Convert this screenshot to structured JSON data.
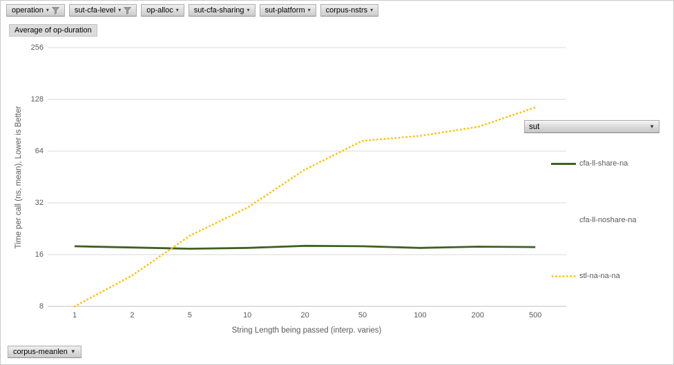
{
  "app_title": "pivot-chart",
  "filters": {
    "fields": [
      {
        "label": "operation",
        "filtered": true
      },
      {
        "label": "sut-cfa-level",
        "filtered": true
      },
      {
        "label": "op-alloc",
        "filtered": false
      },
      {
        "label": "sut-cfa-sharing",
        "filtered": false
      },
      {
        "label": "sut-platform",
        "filtered": false
      },
      {
        "label": "corpus-nstrs",
        "filtered": false
      }
    ],
    "value_button": "Average of op-duration",
    "legend_field_button": "sut",
    "axis_field_button": "corpus-meanlen"
  },
  "legend": {
    "position": "right",
    "entries": [
      {
        "label": "cfa-ll-share-na",
        "sample": "solid",
        "color": "#3e6021"
      },
      {
        "label": "cfa-ll-noshare-na",
        "sample": "none",
        "color": "#595959"
      },
      {
        "label": "stl-na-na-na",
        "sample": "dotted",
        "color": "#ffc000"
      }
    ]
  },
  "chart_data": {
    "type": "line",
    "title": "Average of op-duration",
    "xlabel": "String Length  being passed (interp. varies)",
    "ylabel": "Time per call (ns, mean),  Lower is Better",
    "x_scale": "log-categorical",
    "y_scale": "log2",
    "categories": [
      "1",
      "2",
      "5",
      "10",
      "20",
      "50",
      "100",
      "200",
      "500"
    ],
    "y_ticks": [
      8,
      16,
      32,
      64,
      128,
      256
    ],
    "ylim": [
      8,
      256
    ],
    "grid": true,
    "legend_position": "right",
    "series": [
      {
        "name": "cfa-ll-share-na",
        "style": "solid",
        "color": "#3e6021",
        "values": [
          17.9,
          17.6,
          17.3,
          17.5,
          18.0,
          17.9,
          17.5,
          17.8,
          17.7
        ]
      },
      {
        "name": "cfa-ll-noshare-na",
        "style": "hidden",
        "color": "#595959",
        "values": []
      },
      {
        "name": "stl-na-na-na",
        "style": "dotted",
        "color": "#ffc000",
        "values": [
          8,
          12.1,
          20.6,
          30,
          50,
          73.5,
          78.5,
          88.5,
          115
        ]
      }
    ]
  },
  "colors": {
    "grid": "#d9d9d9",
    "axis_line": "#bfbfbf",
    "tick_text": "#595959"
  }
}
